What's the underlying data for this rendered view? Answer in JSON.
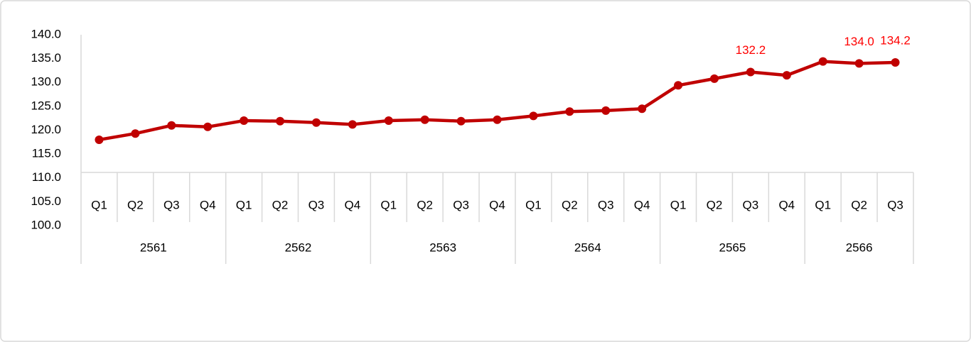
{
  "chart_data": {
    "type": "line",
    "category_groups": [
      {
        "name": "2561",
        "categories": [
          "Q1",
          "Q2",
          "Q3",
          "Q4"
        ]
      },
      {
        "name": "2562",
        "categories": [
          "Q1",
          "Q2",
          "Q3",
          "Q4"
        ]
      },
      {
        "name": "2563",
        "categories": [
          "Q1",
          "Q2",
          "Q3",
          "Q4"
        ]
      },
      {
        "name": "2564",
        "categories": [
          "Q1",
          "Q2",
          "Q3",
          "Q4"
        ]
      },
      {
        "name": "2565",
        "categories": [
          "Q1",
          "Q2",
          "Q3",
          "Q4"
        ]
      },
      {
        "name": "2566",
        "categories": [
          "Q1",
          "Q2",
          "Q3"
        ]
      }
    ],
    "values": [
      118.0,
      119.3,
      121.0,
      120.7,
      122.0,
      121.9,
      121.6,
      121.2,
      122.0,
      122.2,
      121.9,
      122.2,
      123.0,
      123.9,
      124.1,
      124.5,
      129.4,
      130.8,
      132.2,
      131.5,
      134.4,
      134.0,
      134.2
    ],
    "value_labels": [
      null,
      null,
      null,
      null,
      null,
      null,
      null,
      null,
      null,
      null,
      null,
      null,
      null,
      null,
      null,
      null,
      null,
      null,
      "132.2",
      null,
      null,
      "134.0",
      "134.2"
    ],
    "color": "#c00000",
    "label_color": "#ff0000",
    "ylim": [
      100,
      140
    ],
    "yticks": [
      {
        "value": 100,
        "label": "100.0"
      },
      {
        "value": 105,
        "label": "105.0"
      },
      {
        "value": 110,
        "label": "110.0"
      },
      {
        "value": 115,
        "label": "115.0"
      },
      {
        "value": 120,
        "label": "120.0"
      },
      {
        "value": 125,
        "label": "125.0"
      },
      {
        "value": 130,
        "label": "130.0"
      },
      {
        "value": 135,
        "label": "135.0"
      },
      {
        "value": 140,
        "label": "140.0"
      }
    ],
    "grid": false
  }
}
